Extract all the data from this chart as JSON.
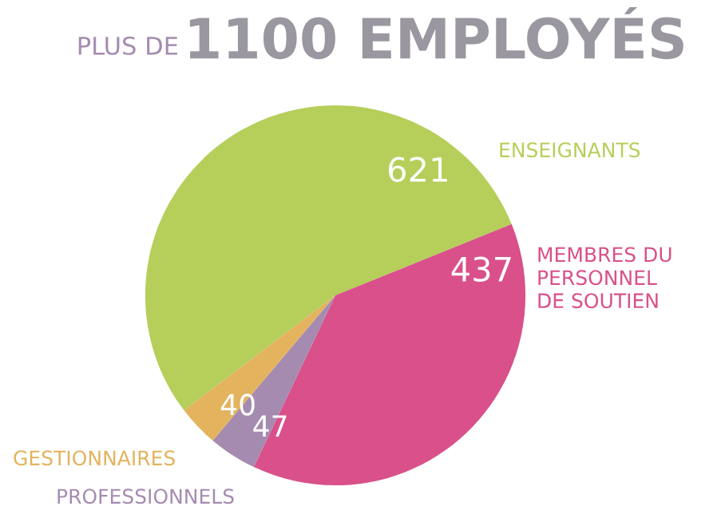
{
  "chart_data": {
    "type": "pie",
    "title": "1100 EMPLOYÉS",
    "subtitle": "PLUS DE",
    "categories": [
      "ENSEIGNANTS",
      "MEMBRES DU\nPERSONNEL\nDE SOUTIEN",
      "PROFESSIONNELS",
      "GESTIONNAIRES"
    ],
    "values": [
      621,
      437,
      47,
      40
    ],
    "colors": [
      "#b5cf5a",
      "#d9508a",
      "#a58bb0",
      "#e3b35e"
    ],
    "data_labels": true,
    "legend": false
  }
}
